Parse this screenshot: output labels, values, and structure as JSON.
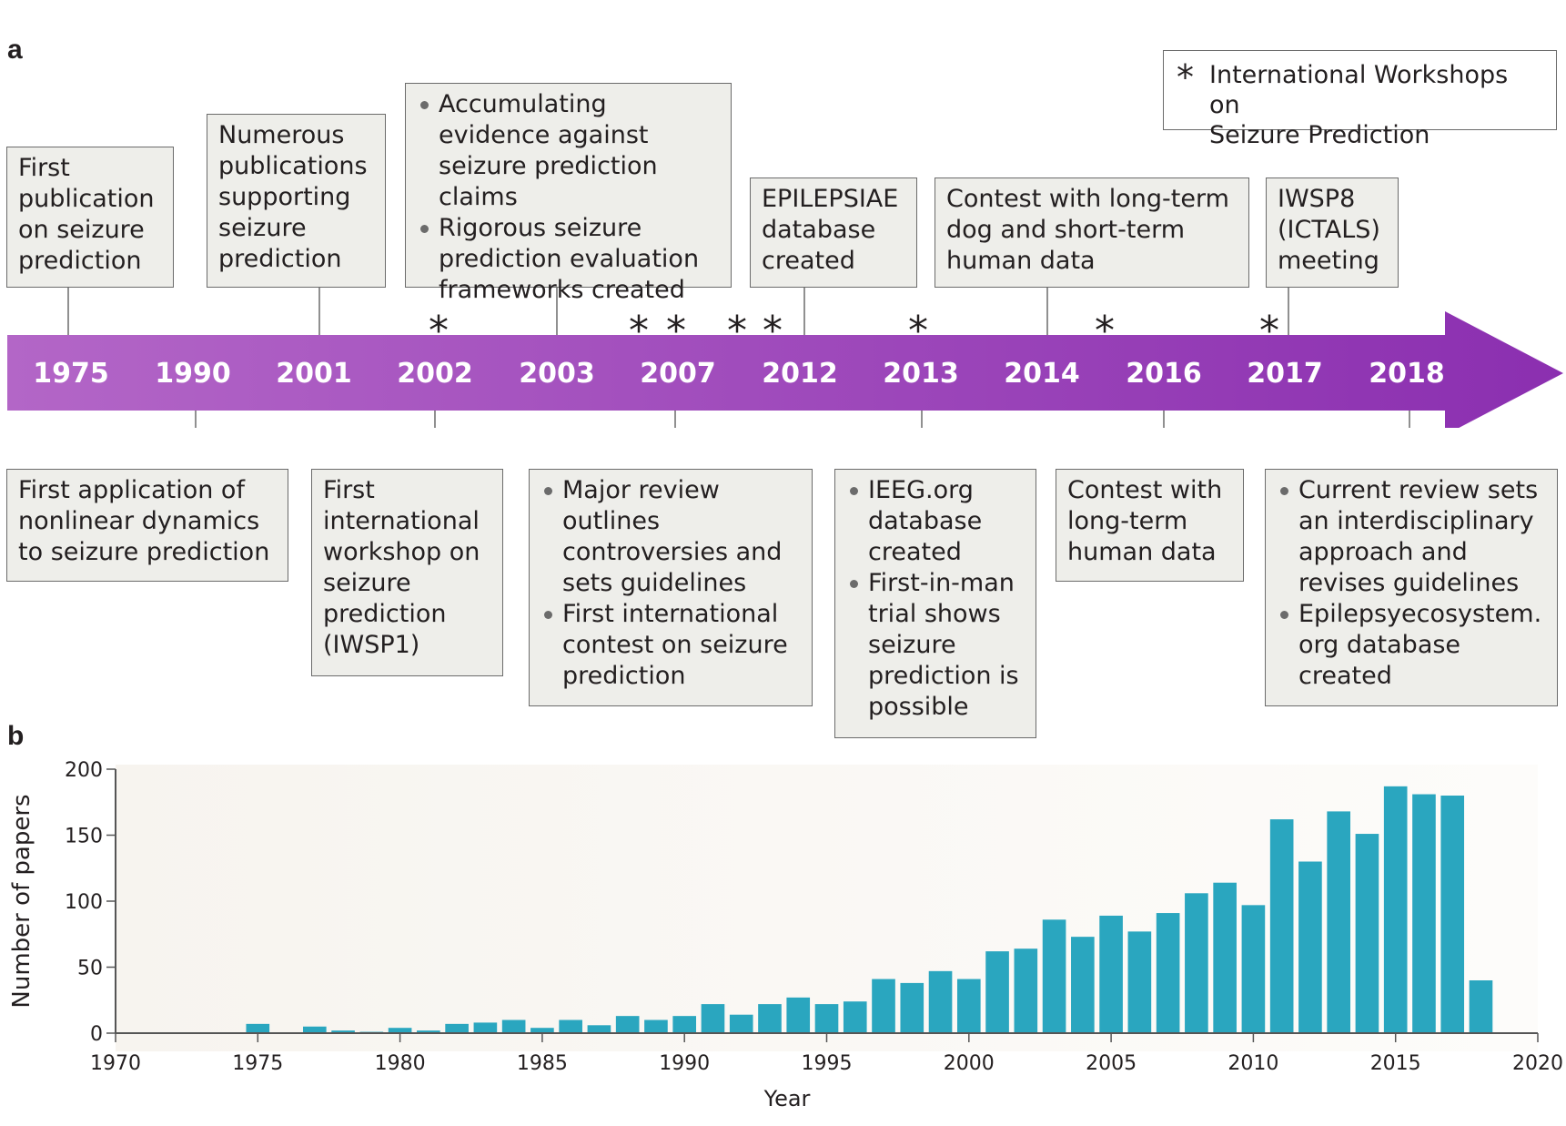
{
  "panel_a": {
    "label": "a",
    "legend": {
      "symbol": "*",
      "text_lines": [
        "International Workshops on",
        "Seizure Prediction"
      ]
    },
    "arrow_colors": [
      "#b366c7",
      "#8b2fb0"
    ],
    "years": [
      "1975",
      "1990",
      "2001",
      "2002",
      "2003",
      "2007",
      "2012",
      "2013",
      "2014",
      "2016",
      "2017",
      "2018"
    ],
    "star_symbol": "*",
    "top_events": [
      {
        "year": "1975",
        "text": "First publication on seizure prediction"
      },
      {
        "year": "2001",
        "text": "Numerous publications supporting seizure prediction"
      },
      {
        "year": "2003",
        "bullets": [
          "Accumulating evidence against seizure prediction claims",
          "Rigorous seizure prediction evaluation frameworks created"
        ]
      },
      {
        "year": "2012",
        "text": "EPILEPSIAE database created"
      },
      {
        "year": "2014",
        "text": "Contest with long-term dog and short-term human data"
      },
      {
        "year": "2017",
        "text": "IWSP8 (ICTALS) meeting"
      }
    ],
    "bottom_events": [
      {
        "year": "1990",
        "text": "First application of nonlinear dynamics to seizure prediction"
      },
      {
        "year": "2002",
        "text": "First international workshop on seizure prediction (IWSP1)"
      },
      {
        "year": "2007",
        "bullets": [
          "Major review outlines controversies and sets guidelines",
          "First international contest on seizure prediction"
        ]
      },
      {
        "year": "2013",
        "bullets": [
          "IEEG.org database created",
          "First-in-man trial shows seizure prediction is possible"
        ]
      },
      {
        "year": "2016",
        "text": "Contest with long-term human data"
      },
      {
        "year": "2018",
        "bullets": [
          "Current review sets an interdisciplinary approach and revises guidelines",
          "Epilepsyecosystem. org database created"
        ]
      }
    ]
  },
  "panel_b": {
    "label": "b"
  },
  "chart_data": {
    "type": "bar",
    "xlabel": "Year",
    "ylabel": "Number of papers",
    "xlim": [
      1970,
      2020
    ],
    "ylim": [
      0,
      200
    ],
    "xticks": [
      1970,
      1975,
      1980,
      1985,
      1990,
      1995,
      2000,
      2005,
      2010,
      2015,
      2020
    ],
    "yticks": [
      0,
      50,
      100,
      150,
      200
    ],
    "bar_color": "#2aa6bf",
    "x": [
      1975,
      1977,
      1978,
      1979,
      1980,
      1981,
      1982,
      1983,
      1984,
      1985,
      1986,
      1987,
      1988,
      1989,
      1990,
      1991,
      1992,
      1993,
      1994,
      1995,
      1996,
      1997,
      1998,
      1999,
      2000,
      2001,
      2002,
      2003,
      2004,
      2005,
      2006,
      2007,
      2008,
      2009,
      2010,
      2011,
      2012,
      2013,
      2014,
      2015,
      2016,
      2017,
      2018
    ],
    "values": [
      7,
      5,
      2,
      1,
      4,
      2,
      7,
      8,
      10,
      4,
      10,
      6,
      13,
      10,
      13,
      22,
      14,
      22,
      27,
      22,
      24,
      41,
      38,
      47,
      41,
      62,
      64,
      86,
      73,
      89,
      77,
      91,
      106,
      114,
      97,
      162,
      130,
      168,
      151,
      187,
      181,
      180,
      40
    ]
  }
}
